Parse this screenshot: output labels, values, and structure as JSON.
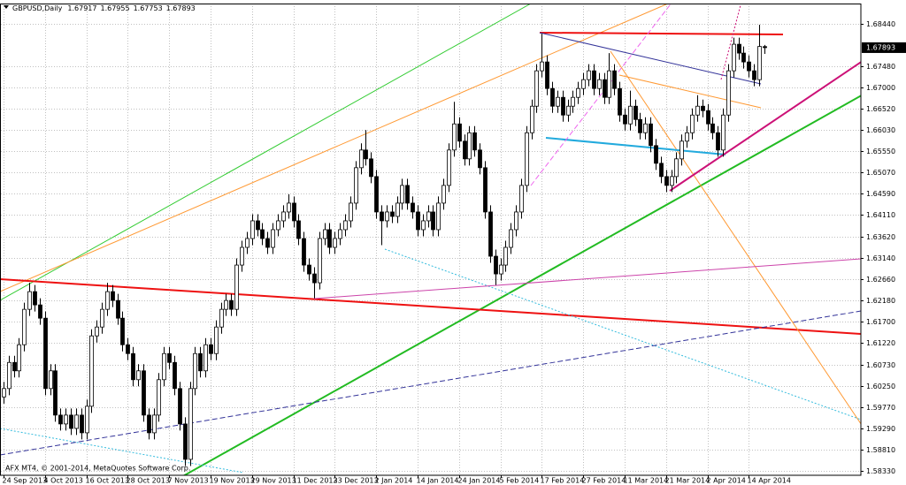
{
  "chart_data": {
    "type": "candlestick",
    "symbol": "GBPUSD,Daily",
    "copyright": "AFX MT4, © 2001-2014, MetaQuotes Software Corp.",
    "bull_color": "#ffffff",
    "bear_color": "#000000",
    "grid": true,
    "ylim": [
      1.5823,
      1.6889
    ],
    "yticks": [
      {
        "value": 1.6844,
        "label": "1.68440"
      },
      {
        "value": 1.6748,
        "label": "1.67480"
      },
      {
        "value": 1.67,
        "label": "1.67000"
      },
      {
        "value": 1.6652,
        "label": "1.66520"
      },
      {
        "value": 1.6603,
        "label": "1.66030"
      },
      {
        "value": 1.6555,
        "label": "1.65550"
      },
      {
        "value": 1.6507,
        "label": "1.65070"
      },
      {
        "value": 1.6459,
        "label": "1.64590"
      },
      {
        "value": 1.6411,
        "label": "1.64110"
      },
      {
        "value": 1.6362,
        "label": "1.63620"
      },
      {
        "value": 1.6314,
        "label": "1.63140"
      },
      {
        "value": 1.6266,
        "label": "1.62660"
      },
      {
        "value": 1.6218,
        "label": "1.62180"
      },
      {
        "value": 1.617,
        "label": "1.61700"
      },
      {
        "value": 1.6122,
        "label": "1.61220"
      },
      {
        "value": 1.6073,
        "label": "1.60730"
      },
      {
        "value": 1.6025,
        "label": "1.60250"
      },
      {
        "value": 1.5977,
        "label": "1.59770"
      },
      {
        "value": 1.5929,
        "label": "1.59290"
      },
      {
        "value": 1.5881,
        "label": "1.58810"
      },
      {
        "value": 1.5833,
        "label": "1.58330"
      }
    ],
    "xticks": [
      {
        "value": 0,
        "label": "24 Sep 2013"
      },
      {
        "value": 8,
        "label": "4 Oct 2013"
      },
      {
        "value": 16,
        "label": "16 Oct 2013"
      },
      {
        "value": 24,
        "label": "28 Oct 2013"
      },
      {
        "value": 32,
        "label": "7 Nov 2013"
      },
      {
        "value": 40,
        "label": "19 Nov 2013"
      },
      {
        "value": 48,
        "label": "29 Nov 2013"
      },
      {
        "value": 56,
        "label": "11 Dec 2013"
      },
      {
        "value": 64,
        "label": "23 Dec 2013"
      },
      {
        "value": 72,
        "label": "2 Jan 2014"
      },
      {
        "value": 80,
        "label": "14 Jan 2014"
      },
      {
        "value": 88,
        "label": "24 Jan 2014"
      },
      {
        "value": 96,
        "label": "5 Feb 2014"
      },
      {
        "value": 104,
        "label": "17 Feb 2014"
      },
      {
        "value": 112,
        "label": "27 Feb 2014"
      },
      {
        "value": 120,
        "label": "11 Mar 2014"
      },
      {
        "value": 128,
        "label": "21 Mar 2014"
      },
      {
        "value": 136,
        "label": "2 Apr 2014"
      },
      {
        "value": 144,
        "label": "14 Apr 2014"
      }
    ],
    "ohlc": [
      [
        1.6,
        1.6034,
        1.5985,
        1.6019
      ],
      [
        1.6019,
        1.6093,
        1.6004,
        1.6078
      ],
      [
        1.6078,
        1.6093,
        1.6044,
        1.6059
      ],
      [
        1.6059,
        1.6133,
        1.6044,
        1.6118
      ],
      [
        1.6118,
        1.6213,
        1.6103,
        1.6198
      ],
      [
        1.6198,
        1.6258,
        1.6183,
        1.6238
      ],
      [
        1.6238,
        1.6253,
        1.6193,
        1.6208
      ],
      [
        1.6208,
        1.6223,
        1.6163,
        1.6178
      ],
      [
        1.6178,
        1.6193,
        1.6004,
        1.6019
      ],
      [
        1.6019,
        1.6074,
        1.6004,
        1.6059
      ],
      [
        1.6059,
        1.6074,
        1.5944,
        1.5959
      ],
      [
        1.5959,
        1.5974,
        1.5924,
        1.5939
      ],
      [
        1.5939,
        1.5974,
        1.5924,
        1.5959
      ],
      [
        1.5959,
        1.5974,
        1.5914,
        1.5929
      ],
      [
        1.5929,
        1.5974,
        1.5914,
        1.5959
      ],
      [
        1.5959,
        1.5974,
        1.5904,
        1.5919
      ],
      [
        1.5919,
        1.5994,
        1.5904,
        1.5979
      ],
      [
        1.5979,
        1.6153,
        1.5964,
        1.6138
      ],
      [
        1.6138,
        1.6173,
        1.6123,
        1.6158
      ],
      [
        1.6158,
        1.6213,
        1.6143,
        1.6198
      ],
      [
        1.6198,
        1.6258,
        1.6183,
        1.6238
      ],
      [
        1.6238,
        1.6253,
        1.6203,
        1.6218
      ],
      [
        1.6218,
        1.6233,
        1.6163,
        1.6178
      ],
      [
        1.6178,
        1.6193,
        1.6103,
        1.6118
      ],
      [
        1.6118,
        1.6133,
        1.6083,
        1.6098
      ],
      [
        1.6098,
        1.6113,
        1.6024,
        1.6039
      ],
      [
        1.6039,
        1.6074,
        1.6024,
        1.6059
      ],
      [
        1.6059,
        1.6074,
        1.5944,
        1.5959
      ],
      [
        1.5959,
        1.5974,
        1.5904,
        1.5919
      ],
      [
        1.5919,
        1.5974,
        1.5904,
        1.5959
      ],
      [
        1.5959,
        1.6054,
        1.5944,
        1.6039
      ],
      [
        1.6039,
        1.6113,
        1.6024,
        1.6098
      ],
      [
        1.6098,
        1.6113,
        1.6063,
        1.6078
      ],
      [
        1.6078,
        1.6093,
        1.6004,
        1.6019
      ],
      [
        1.6019,
        1.6034,
        1.5924,
        1.5939
      ],
      [
        1.5939,
        1.5954,
        1.5844,
        1.5859
      ],
      [
        1.5859,
        1.6034,
        1.5844,
        1.6019
      ],
      [
        1.6019,
        1.6113,
        1.6004,
        1.6098
      ],
      [
        1.6098,
        1.6113,
        1.6044,
        1.6059
      ],
      [
        1.6059,
        1.6133,
        1.6044,
        1.6118
      ],
      [
        1.6118,
        1.6133,
        1.6083,
        1.6098
      ],
      [
        1.6098,
        1.6173,
        1.6083,
        1.6158
      ],
      [
        1.6158,
        1.6213,
        1.6143,
        1.6198
      ],
      [
        1.6198,
        1.6233,
        1.6183,
        1.6218
      ],
      [
        1.6218,
        1.6233,
        1.6183,
        1.6198
      ],
      [
        1.6198,
        1.6313,
        1.6183,
        1.6298
      ],
      [
        1.6298,
        1.6353,
        1.6283,
        1.6338
      ],
      [
        1.6338,
        1.6373,
        1.6323,
        1.6358
      ],
      [
        1.6358,
        1.6413,
        1.6343,
        1.6398
      ],
      [
        1.6398,
        1.6413,
        1.6363,
        1.6378
      ],
      [
        1.6378,
        1.6393,
        1.6343,
        1.6358
      ],
      [
        1.6358,
        1.6373,
        1.6323,
        1.6338
      ],
      [
        1.6338,
        1.6393,
        1.6323,
        1.6378
      ],
      [
        1.6378,
        1.6413,
        1.6363,
        1.6398
      ],
      [
        1.6398,
        1.6433,
        1.6383,
        1.6418
      ],
      [
        1.6418,
        1.6458,
        1.6403,
        1.6438
      ],
      [
        1.6438,
        1.6453,
        1.6383,
        1.6398
      ],
      [
        1.6398,
        1.6413,
        1.6343,
        1.6358
      ],
      [
        1.6358,
        1.6373,
        1.6283,
        1.6298
      ],
      [
        1.6298,
        1.6313,
        1.6263,
        1.6278
      ],
      [
        1.6278,
        1.6293,
        1.6223,
        1.6258
      ],
      [
        1.6258,
        1.6373,
        1.6243,
        1.6358
      ],
      [
        1.6358,
        1.6393,
        1.6343,
        1.6378
      ],
      [
        1.6378,
        1.6393,
        1.6323,
        1.6338
      ],
      [
        1.6338,
        1.6373,
        1.6323,
        1.6358
      ],
      [
        1.6358,
        1.6393,
        1.6343,
        1.6378
      ],
      [
        1.6378,
        1.6413,
        1.6363,
        1.6398
      ],
      [
        1.6398,
        1.6453,
        1.6383,
        1.6438
      ],
      [
        1.6438,
        1.6533,
        1.6423,
        1.6518
      ],
      [
        1.6518,
        1.6573,
        1.6503,
        1.6558
      ],
      [
        1.6558,
        1.6603,
        1.6523,
        1.6538
      ],
      [
        1.6538,
        1.6553,
        1.6483,
        1.6498
      ],
      [
        1.6498,
        1.6513,
        1.6403,
        1.6418
      ],
      [
        1.6418,
        1.6433,
        1.6343,
        1.6398
      ],
      [
        1.6398,
        1.6433,
        1.6383,
        1.6418
      ],
      [
        1.6418,
        1.6433,
        1.6393,
        1.6408
      ],
      [
        1.6408,
        1.6453,
        1.6393,
        1.6438
      ],
      [
        1.6438,
        1.6493,
        1.6423,
        1.6478
      ],
      [
        1.6478,
        1.6493,
        1.6423,
        1.6438
      ],
      [
        1.6438,
        1.6453,
        1.6403,
        1.6418
      ],
      [
        1.6418,
        1.6433,
        1.6363,
        1.6378
      ],
      [
        1.6378,
        1.6413,
        1.6363,
        1.6398
      ],
      [
        1.6398,
        1.6433,
        1.6383,
        1.6418
      ],
      [
        1.6418,
        1.6433,
        1.6363,
        1.6378
      ],
      [
        1.6378,
        1.6453,
        1.6363,
        1.6438
      ],
      [
        1.6438,
        1.6493,
        1.6423,
        1.6478
      ],
      [
        1.6478,
        1.6573,
        1.6463,
        1.6558
      ],
      [
        1.6558,
        1.6667,
        1.6543,
        1.6617
      ],
      [
        1.6617,
        1.6632,
        1.6563,
        1.6578
      ],
      [
        1.6578,
        1.6593,
        1.6523,
        1.6538
      ],
      [
        1.6538,
        1.6612,
        1.6523,
        1.6597
      ],
      [
        1.6597,
        1.6612,
        1.6543,
        1.6558
      ],
      [
        1.6558,
        1.6573,
        1.6503,
        1.6518
      ],
      [
        1.6518,
        1.6533,
        1.6403,
        1.6418
      ],
      [
        1.6418,
        1.6433,
        1.6303,
        1.6318
      ],
      [
        1.6318,
        1.6333,
        1.6253,
        1.6278
      ],
      [
        1.6278,
        1.6313,
        1.6263,
        1.6298
      ],
      [
        1.6298,
        1.6353,
        1.6283,
        1.6338
      ],
      [
        1.6338,
        1.6393,
        1.6323,
        1.6378
      ],
      [
        1.6378,
        1.6433,
        1.6363,
        1.6418
      ],
      [
        1.6418,
        1.6493,
        1.6403,
        1.6478
      ],
      [
        1.6478,
        1.6612,
        1.6463,
        1.6597
      ],
      [
        1.6597,
        1.6672,
        1.6582,
        1.6657
      ],
      [
        1.6657,
        1.6752,
        1.6642,
        1.6737
      ],
      [
        1.6737,
        1.6821,
        1.6722,
        1.6757
      ],
      [
        1.6757,
        1.6772,
        1.6682,
        1.6697
      ],
      [
        1.6697,
        1.6712,
        1.6642,
        1.6657
      ],
      [
        1.6657,
        1.6692,
        1.6642,
        1.6677
      ],
      [
        1.6677,
        1.6692,
        1.6622,
        1.6637
      ],
      [
        1.6637,
        1.6672,
        1.6622,
        1.6657
      ],
      [
        1.6657,
        1.6692,
        1.6642,
        1.6677
      ],
      [
        1.6677,
        1.6712,
        1.6662,
        1.6697
      ],
      [
        1.6697,
        1.6732,
        1.6682,
        1.6717
      ],
      [
        1.6717,
        1.6752,
        1.6702,
        1.6737
      ],
      [
        1.6737,
        1.6752,
        1.6682,
        1.6697
      ],
      [
        1.6697,
        1.6732,
        1.6682,
        1.6717
      ],
      [
        1.6717,
        1.6732,
        1.6662,
        1.6677
      ],
      [
        1.6677,
        1.6777,
        1.6662,
        1.6737
      ],
      [
        1.6737,
        1.6752,
        1.6682,
        1.6697
      ],
      [
        1.6697,
        1.6712,
        1.6622,
        1.6637
      ],
      [
        1.6637,
        1.6652,
        1.6602,
        1.6617
      ],
      [
        1.6617,
        1.6692,
        1.6602,
        1.6657
      ],
      [
        1.6657,
        1.6672,
        1.6612,
        1.6627
      ],
      [
        1.6627,
        1.6642,
        1.6582,
        1.6597
      ],
      [
        1.6597,
        1.6632,
        1.6582,
        1.6617
      ],
      [
        1.6617,
        1.6632,
        1.6553,
        1.6568
      ],
      [
        1.6568,
        1.6583,
        1.6513,
        1.6528
      ],
      [
        1.6528,
        1.6543,
        1.6483,
        1.6498
      ],
      [
        1.6498,
        1.6513,
        1.6463,
        1.6478
      ],
      [
        1.6478,
        1.6513,
        1.6463,
        1.6498
      ],
      [
        1.6498,
        1.6553,
        1.6483,
        1.6538
      ],
      [
        1.6538,
        1.6593,
        1.6523,
        1.6578
      ],
      [
        1.6578,
        1.6612,
        1.6563,
        1.6597
      ],
      [
        1.6597,
        1.6652,
        1.6582,
        1.6637
      ],
      [
        1.6637,
        1.6682,
        1.6622,
        1.6657
      ],
      [
        1.6657,
        1.6672,
        1.6632,
        1.6647
      ],
      [
        1.6647,
        1.6662,
        1.6602,
        1.6617
      ],
      [
        1.6617,
        1.6632,
        1.6582,
        1.6597
      ],
      [
        1.6597,
        1.6612,
        1.6543,
        1.6558
      ],
      [
        1.6558,
        1.6652,
        1.6543,
        1.6637
      ],
      [
        1.6637,
        1.6752,
        1.6622,
        1.6737
      ],
      [
        1.6737,
        1.6812,
        1.6722,
        1.6797
      ],
      [
        1.6797,
        1.6812,
        1.6762,
        1.6777
      ],
      [
        1.6777,
        1.6792,
        1.6742,
        1.6757
      ],
      [
        1.6757,
        1.6772,
        1.6722,
        1.6737
      ],
      [
        1.6737,
        1.6752,
        1.6702,
        1.6717
      ],
      [
        1.6717,
        1.6841,
        1.6702,
        1.6792
      ],
      [
        1.67917,
        1.67955,
        1.67753,
        1.67893
      ]
    ]
  }
}
